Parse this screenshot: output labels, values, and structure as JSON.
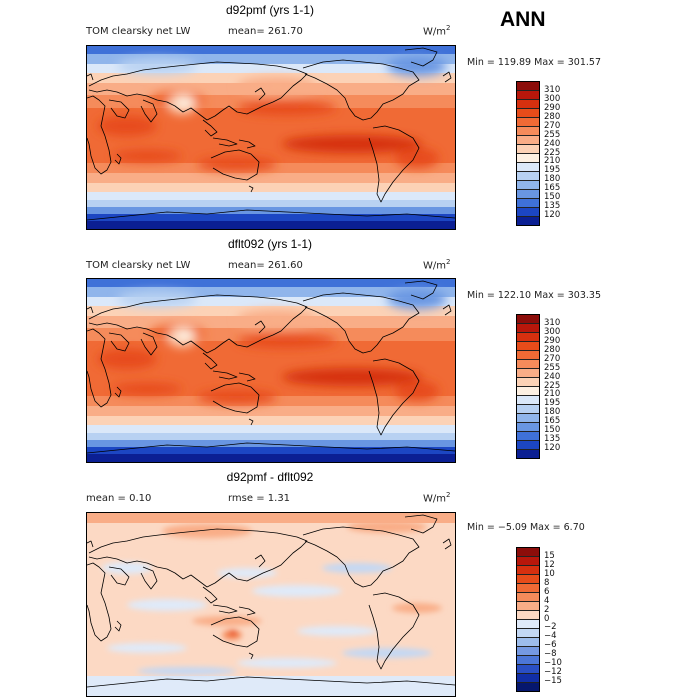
{
  "season": "ANN",
  "warm_scale": {
    "labels": [
      "310",
      "300",
      "290",
      "280",
      "270",
      "255",
      "240",
      "225",
      "210",
      "195",
      "180",
      "165",
      "150",
      "135",
      "120"
    ],
    "colors": [
      "#8c0d0a",
      "#b8170b",
      "#d6300f",
      "#e74c1a",
      "#f06a35",
      "#f58b5b",
      "#f9ad87",
      "#fcd2b6",
      "#fdf0e2",
      "#dbe8f9",
      "#b8d1f2",
      "#90b5eb",
      "#6996e2",
      "#3f71d8",
      "#1c46c3",
      "#0b1f93"
    ]
  },
  "diff_scale": {
    "labels": [
      "15",
      "12",
      "10",
      "8",
      "6",
      "4",
      "2",
      "0",
      "−2",
      "−4",
      "−6",
      "−8",
      "−10",
      "−12",
      "−15"
    ],
    "colors": [
      "#8c0d0a",
      "#b8170b",
      "#d6300f",
      "#e74c1a",
      "#f06a35",
      "#f58b5b",
      "#f9ad87",
      "#fcd9c4",
      "#dfeaf9",
      "#c3d8f4",
      "#9dbdec",
      "#7599e2",
      "#4c76d7",
      "#2a4fc4",
      "#112ea6",
      "#06176e"
    ]
  },
  "panels": [
    {
      "title": "d92pmf (yrs 1-1)",
      "left_label": "TOM clearsky net LW",
      "stat1": "mean= 261.70",
      "stat2": "",
      "units": "W/m",
      "units_sup": "2",
      "minmax": "Min = 119.89 Max = 301.57",
      "field": "warm"
    },
    {
      "title": "dflt092 (yrs 1-1)",
      "left_label": "TOM clearsky net LW",
      "stat1": "mean= 261.60",
      "stat2": "",
      "units": "W/m",
      "units_sup": "2",
      "minmax": "Min = 122.10 Max = 303.35",
      "field": "warm"
    },
    {
      "title": "d92pmf - dflt092",
      "left_label": "mean =    0.10",
      "stat1": "rmse =    1.31",
      "stat2": "",
      "units": "W/m",
      "units_sup": "2",
      "minmax": "Min =  −5.09 Max =    6.70",
      "field": "diff"
    }
  ]
}
